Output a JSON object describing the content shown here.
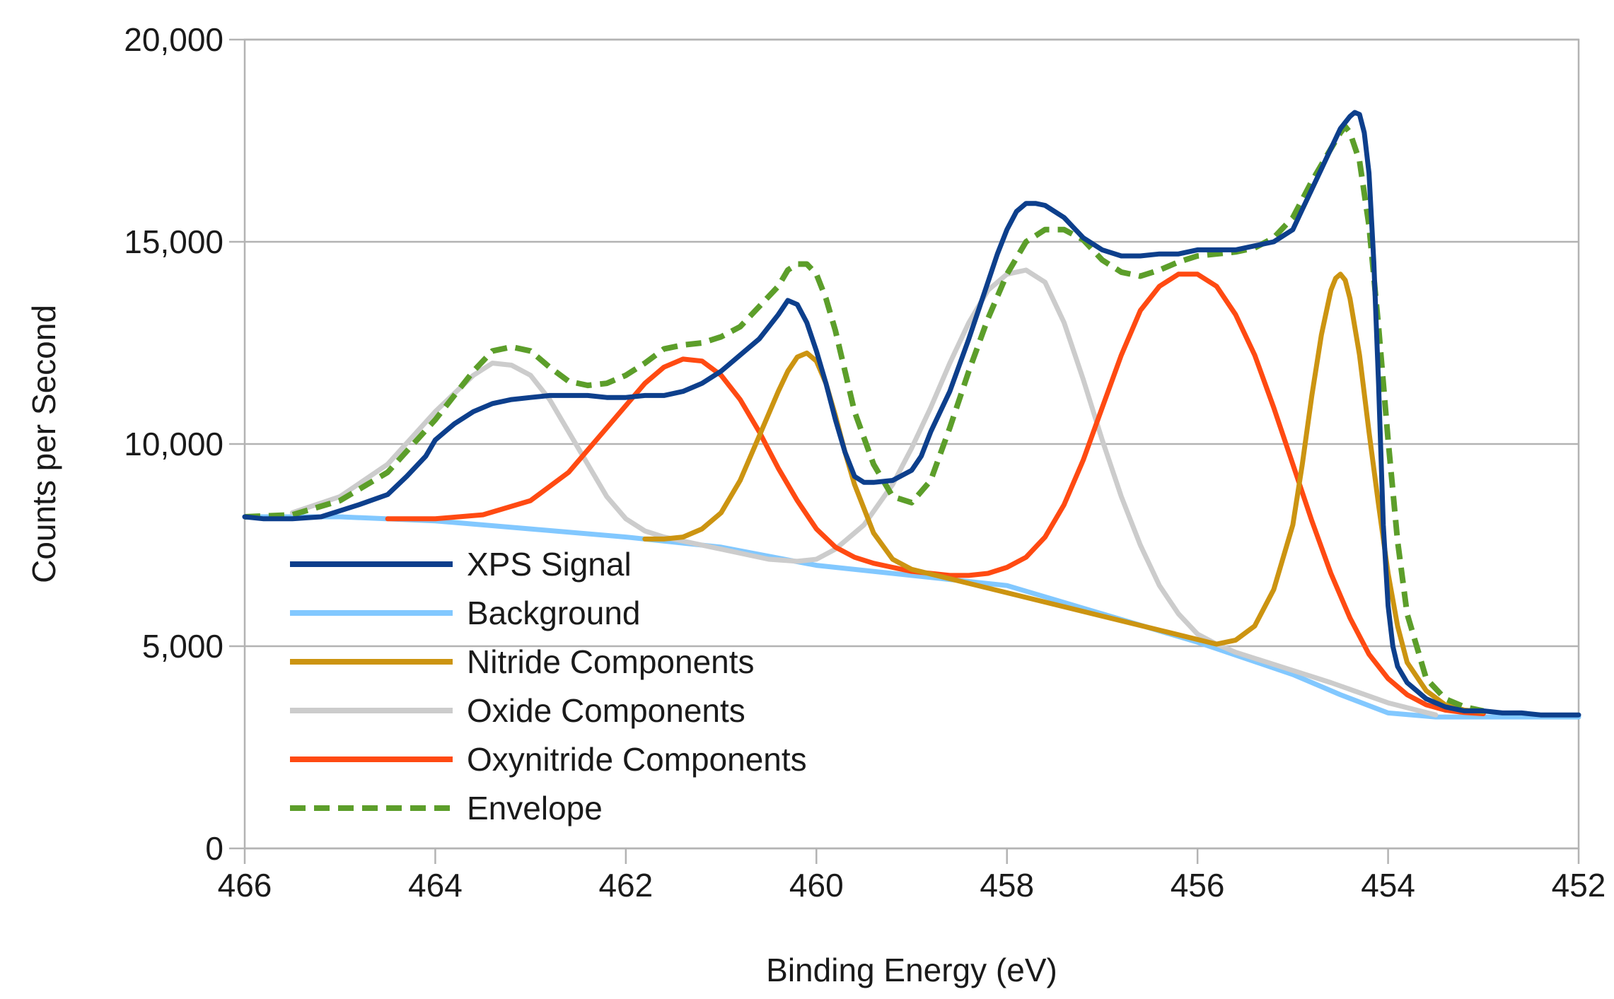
{
  "chart_data": {
    "type": "line",
    "title": "",
    "xlabel": "Binding Energy (eV)",
    "ylabel": "Counts per Second",
    "xlim": [
      466,
      452
    ],
    "ylim": [
      0,
      20000
    ],
    "x_ticks": [
      466,
      464,
      462,
      460,
      458,
      456,
      454,
      452
    ],
    "y_ticks": [
      0,
      5000,
      10000,
      15000,
      20000
    ],
    "x_tick_labels": [
      "466",
      "464",
      "462",
      "460",
      "458",
      "456",
      "454",
      "452"
    ],
    "y_tick_labels": [
      "0",
      "5,000",
      "10,000",
      "15,000",
      "20,000"
    ],
    "grid": true,
    "legend_position": "left",
    "series": [
      {
        "name": "XPS Signal",
        "color": "#0d3f8c",
        "style": "solid",
        "x": [
          466,
          465.8,
          465.5,
          465.2,
          465,
          464.8,
          464.5,
          464.3,
          464.1,
          464,
          463.8,
          463.6,
          463.4,
          463.2,
          463,
          462.8,
          462.6,
          462.4,
          462.2,
          462,
          461.8,
          461.6,
          461.4,
          461.2,
          461,
          460.8,
          460.6,
          460.4,
          460.3,
          460.2,
          460.1,
          460,
          459.9,
          459.8,
          459.7,
          459.6,
          459.5,
          459.4,
          459.2,
          459,
          458.9,
          458.8,
          458.6,
          458.4,
          458.3,
          458.2,
          458.1,
          458,
          457.9,
          457.8,
          457.7,
          457.6,
          457.4,
          457.2,
          457,
          456.8,
          456.6,
          456.4,
          456.2,
          456,
          455.8,
          455.6,
          455.4,
          455.2,
          455,
          454.9,
          454.8,
          454.7,
          454.6,
          454.5,
          454.4,
          454.35,
          454.3,
          454.25,
          454.2,
          454.15,
          454.1,
          454.05,
          454,
          453.95,
          453.9,
          453.8,
          453.7,
          453.6,
          453.5,
          453.4,
          453.3,
          453.2,
          453,
          452.8,
          452.6,
          452.4,
          452.2,
          452
        ],
        "y": [
          8200,
          8150,
          8150,
          8200,
          8350,
          8500,
          8750,
          9200,
          9700,
          10100,
          10500,
          10800,
          11000,
          11100,
          11150,
          11200,
          11200,
          11200,
          11150,
          11150,
          11200,
          11200,
          11300,
          11500,
          11800,
          12200,
          12600,
          13200,
          13550,
          13450,
          13000,
          12300,
          11500,
          10600,
          9800,
          9200,
          9050,
          9050,
          9100,
          9350,
          9700,
          10300,
          11300,
          12600,
          13300,
          14000,
          14700,
          15300,
          15750,
          15950,
          15950,
          15900,
          15600,
          15100,
          14800,
          14650,
          14650,
          14700,
          14700,
          14800,
          14800,
          14800,
          14900,
          15000,
          15300,
          15800,
          16300,
          16800,
          17300,
          17800,
          18100,
          18200,
          18150,
          17700,
          16700,
          14500,
          11500,
          8000,
          6000,
          5000,
          4500,
          4100,
          3900,
          3700,
          3600,
          3500,
          3450,
          3400,
          3400,
          3350,
          3350,
          3300,
          3300,
          3300
        ]
      },
      {
        "name": "Background",
        "color": "#82c8ff",
        "style": "solid",
        "x": [
          466,
          465,
          464,
          463,
          462,
          461,
          460,
          459,
          458,
          457,
          456,
          455,
          454.5,
          454,
          453.5,
          453,
          452
        ],
        "y": [
          8200,
          8200,
          8100,
          7900,
          7700,
          7450,
          7000,
          6750,
          6500,
          5800,
          5100,
          4300,
          3800,
          3350,
          3250,
          3250,
          3250
        ]
      },
      {
        "name": "Nitride Components",
        "color": "#cc9411",
        "style": "solid",
        "x": [
          461.8,
          461.6,
          461.4,
          461.2,
          461,
          460.8,
          460.6,
          460.4,
          460.3,
          460.2,
          460.1,
          460,
          459.9,
          459.8,
          459.7,
          459.6,
          459.4,
          459.2,
          459,
          455.8,
          455.6,
          455.4,
          455.2,
          455,
          454.9,
          454.8,
          454.7,
          454.6,
          454.55,
          454.5,
          454.45,
          454.4,
          454.3,
          454.2,
          454.1,
          454,
          453.9,
          453.8,
          453.6,
          453.4,
          453.2,
          453
        ],
        "y": [
          7650,
          7650,
          7700,
          7900,
          8300,
          9100,
          10200,
          11300,
          11800,
          12150,
          12250,
          12050,
          11500,
          10700,
          9800,
          9000,
          7800,
          7150,
          6900,
          5050,
          5150,
          5500,
          6400,
          8000,
          9500,
          11200,
          12700,
          13800,
          14100,
          14200,
          14050,
          13600,
          12200,
          10300,
          8500,
          6800,
          5500,
          4600,
          3900,
          3550,
          3420,
          3380
        ]
      },
      {
        "name": "Oxide Components",
        "color": "#cccccc",
        "style": "solid",
        "x": [
          465.5,
          465,
          464.5,
          464,
          463.6,
          463.4,
          463.2,
          463,
          462.8,
          462.6,
          462.4,
          462.2,
          462,
          461.8,
          461.6,
          460.5,
          460.2,
          460,
          459.8,
          459.5,
          459.2,
          459,
          458.8,
          458.6,
          458.4,
          458.2,
          458,
          457.8,
          457.6,
          457.4,
          457.2,
          457,
          456.8,
          456.6,
          456.4,
          456.2,
          456,
          455.8,
          455.6,
          455.4,
          455.2,
          455,
          454.6,
          454,
          453.5
        ],
        "y": [
          8300,
          8700,
          9500,
          10800,
          11700,
          12000,
          11950,
          11700,
          11100,
          10300,
          9500,
          8700,
          8150,
          7850,
          7700,
          7150,
          7100,
          7150,
          7400,
          8000,
          9000,
          9900,
          10900,
          12000,
          13000,
          13800,
          14200,
          14300,
          14000,
          13000,
          11600,
          10100,
          8700,
          7500,
          6500,
          5800,
          5300,
          5050,
          4850,
          4700,
          4550,
          4400,
          4100,
          3600,
          3300
        ]
      },
      {
        "name": "Oxynitride Components",
        "color": "#ff4a12",
        "style": "solid",
        "x": [
          464.5,
          464,
          463.5,
          463,
          462.6,
          462.2,
          461.8,
          461.6,
          461.4,
          461.2,
          461,
          460.8,
          460.6,
          460.4,
          460.2,
          460,
          459.8,
          459.6,
          459.4,
          459.2,
          459,
          458.8,
          458.6,
          458.4,
          458.2,
          458,
          457.8,
          457.6,
          457.4,
          457.2,
          457,
          456.8,
          456.6,
          456.4,
          456.2,
          456,
          455.8,
          455.6,
          455.4,
          455.2,
          455,
          454.8,
          454.6,
          454.4,
          454.2,
          454,
          453.8,
          453.6,
          453.4,
          453.2,
          453
        ],
        "y": [
          8150,
          8150,
          8250,
          8600,
          9300,
          10400,
          11500,
          11900,
          12100,
          12050,
          11700,
          11100,
          10300,
          9400,
          8600,
          7900,
          7450,
          7200,
          7050,
          6950,
          6850,
          6800,
          6750,
          6750,
          6800,
          6950,
          7200,
          7700,
          8500,
          9600,
          10900,
          12200,
          13300,
          13900,
          14200,
          14200,
          13900,
          13200,
          12200,
          10900,
          9500,
          8100,
          6800,
          5700,
          4800,
          4200,
          3800,
          3550,
          3420,
          3360,
          3330
        ]
      },
      {
        "name": "Envelope",
        "color": "#5c9e2a",
        "style": "dashed",
        "x": [
          466,
          465.5,
          465,
          464.5,
          464,
          463.6,
          463.4,
          463.2,
          463,
          462.8,
          462.6,
          462.4,
          462.2,
          462,
          461.8,
          461.6,
          461.4,
          461.2,
          461,
          460.8,
          460.6,
          460.4,
          460.3,
          460.2,
          460.1,
          460,
          459.9,
          459.8,
          459.7,
          459.6,
          459.4,
          459.2,
          459,
          458.8,
          458.6,
          458.4,
          458.2,
          458,
          457.8,
          457.6,
          457.4,
          457.2,
          457,
          456.8,
          456.6,
          456.4,
          456.2,
          456,
          455.8,
          455.6,
          455.4,
          455.2,
          455,
          454.8,
          454.6,
          454.5,
          454.45,
          454.4,
          454.3,
          454.2,
          454.1,
          454,
          453.9,
          453.8,
          453.6,
          453.4,
          453.2,
          453
        ],
        "y": [
          8200,
          8250,
          8600,
          9300,
          10600,
          11800,
          12300,
          12400,
          12300,
          11900,
          11550,
          11450,
          11500,
          11700,
          12000,
          12350,
          12450,
          12500,
          12650,
          12900,
          13400,
          13900,
          14300,
          14450,
          14450,
          14200,
          13600,
          12800,
          11800,
          10800,
          9500,
          8700,
          8550,
          9100,
          10400,
          11800,
          13100,
          14200,
          15000,
          15300,
          15300,
          15050,
          14550,
          14250,
          14150,
          14300,
          14500,
          14650,
          14700,
          14750,
          14850,
          15100,
          15600,
          16500,
          17300,
          17700,
          17850,
          17700,
          17000,
          15400,
          12900,
          10100,
          7600,
          5800,
          4200,
          3700,
          3500,
          3400
        ]
      }
    ]
  }
}
